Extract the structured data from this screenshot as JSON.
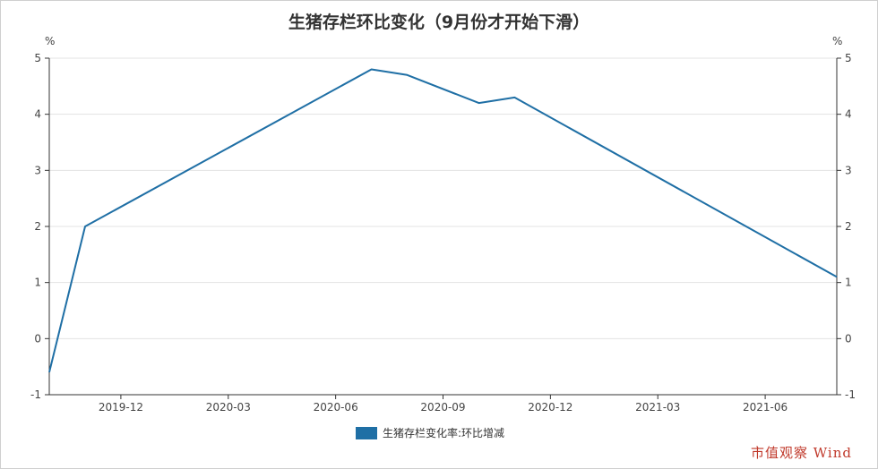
{
  "chart_data": {
    "type": "line",
    "title": "生猪存栏环比变化（9月份才开始下滑）",
    "unit_left": "%",
    "unit_right": "%",
    "ylim": [
      -1,
      5
    ],
    "yticks": [
      -1,
      0,
      1,
      2,
      3,
      4,
      5
    ],
    "xrange": [
      "2019-10",
      "2021-08"
    ],
    "xticks": [
      "2019-12",
      "2020-03",
      "2020-06",
      "2020-09",
      "2020-12",
      "2021-03",
      "2021-06"
    ],
    "grid": true,
    "legend_position": "bottom",
    "series": [
      {
        "name": "生猪存栏变化率:环比增减",
        "color": "#1f6fa5",
        "x": [
          "2019-10",
          "2019-11",
          "2020-07",
          "2020-08",
          "2020-10",
          "2020-11",
          "2021-08"
        ],
        "values": [
          -0.6,
          2.0,
          4.8,
          4.7,
          4.2,
          4.3,
          1.1
        ]
      }
    ]
  },
  "watermark": "市值观察 Wind"
}
